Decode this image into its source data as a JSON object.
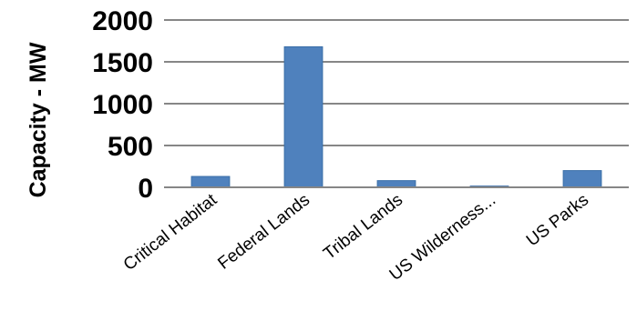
{
  "chart_data": {
    "type": "bar",
    "title": "",
    "xlabel": "",
    "ylabel": "Capacity - MW",
    "ylim": [
      0,
      2000
    ],
    "yticks": [
      0,
      500,
      1000,
      1500,
      2000
    ],
    "grid": true,
    "legend": "none",
    "bar_color": "#4F81BD",
    "categories": [
      "Critical Habitat",
      "Federal Lands",
      "Tribal Lands",
      "US Wilderness...",
      "US Parks"
    ],
    "values": [
      130,
      1680,
      80,
      15,
      200
    ]
  }
}
